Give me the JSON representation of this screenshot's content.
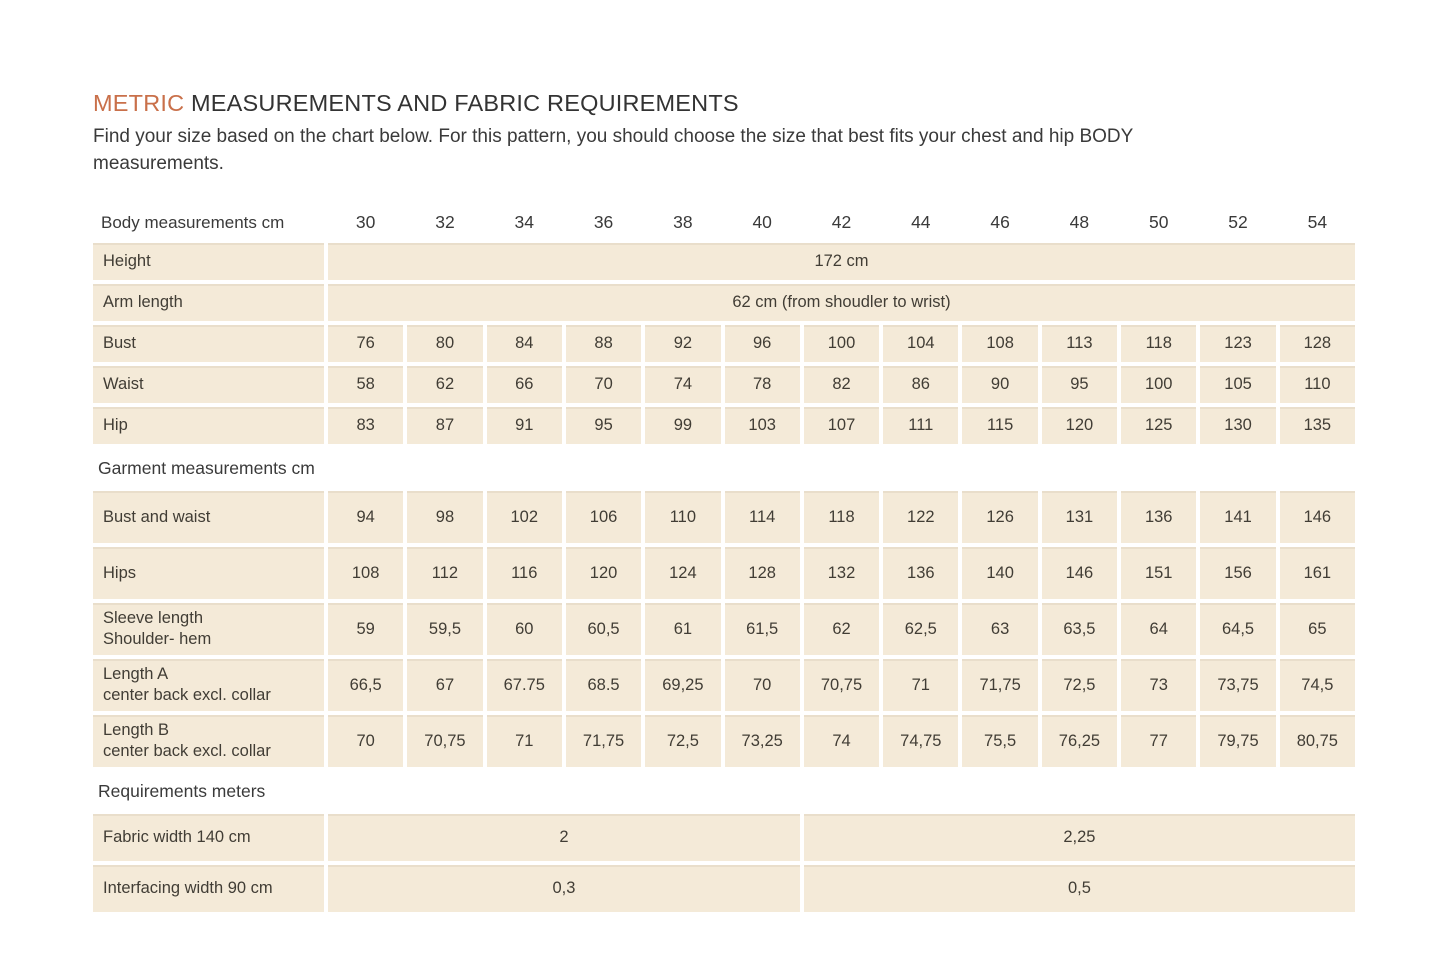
{
  "page": {
    "title_accent": "METRIC",
    "title_rest": " MEASUREMENTS AND FABRIC REQUIREMENTS",
    "subtitle": "Find your size based on the chart below. For this pattern, you should choose the size that best fits your chest and hip BODY measurements."
  },
  "colors": {
    "accent_orange": "#c9704a",
    "cell_background": "#f4ead8",
    "text": "#3c3830",
    "page_background": "#ffffff"
  },
  "table": {
    "header_label": "Body measurements cm",
    "sizes": [
      "30",
      "32",
      "34",
      "36",
      "38",
      "40",
      "42",
      "44",
      "46",
      "48",
      "50",
      "52",
      "54"
    ],
    "rows": [
      {
        "type": "span",
        "label": "Height",
        "text": "172 cm"
      },
      {
        "type": "span",
        "label": "Arm length",
        "text": "62 cm (from shoudler to wrist)"
      },
      {
        "type": "cells",
        "label": "Bust",
        "values": [
          "76",
          "80",
          "84",
          "88",
          "92",
          "96",
          "100",
          "104",
          "108",
          "113",
          "118",
          "123",
          "128"
        ]
      },
      {
        "type": "cells",
        "label": "Waist",
        "values": [
          "58",
          "62",
          "66",
          "70",
          "74",
          "78",
          "82",
          "86",
          "90",
          "95",
          "100",
          "105",
          "110"
        ]
      },
      {
        "type": "cells",
        "label": "Hip",
        "values": [
          "83",
          "87",
          "91",
          "95",
          "99",
          "103",
          "107",
          "111",
          "115",
          "120",
          "125",
          "130",
          "135"
        ]
      },
      {
        "type": "section",
        "label": "Garment measurements cm"
      },
      {
        "type": "cells",
        "tall": true,
        "label": "Bust and waist",
        "values": [
          "94",
          "98",
          "102",
          "106",
          "110",
          "114",
          "118",
          "122",
          "126",
          "131",
          "136",
          "141",
          "146"
        ]
      },
      {
        "type": "cells",
        "tall": true,
        "label": "Hips",
        "values": [
          "108",
          "112",
          "116",
          "120",
          "124",
          "128",
          "132",
          "136",
          "140",
          "146",
          "151",
          "156",
          "161"
        ]
      },
      {
        "type": "cells",
        "tall": true,
        "label": "Sleeve length",
        "label2": "Shoulder- hem",
        "values": [
          "59",
          "59,5",
          "60",
          "60,5",
          "61",
          "61,5",
          "62",
          "62,5",
          "63",
          "63,5",
          "64",
          "64,5",
          "65"
        ]
      },
      {
        "type": "cells",
        "tall": true,
        "label": "Length A",
        "label2": "center back excl. collar",
        "values": [
          "66,5",
          "67",
          "67.75",
          "68.5",
          "69,25",
          "70",
          "70,75",
          "71",
          "71,75",
          "72,5",
          "73",
          "73,75",
          "74,5"
        ]
      },
      {
        "type": "cells",
        "tall": true,
        "label": "Length B",
        "label2": "center back excl. collar",
        "values": [
          "70",
          "70,75",
          "71",
          "71,75",
          "72,5",
          "73,25",
          "74",
          "74,75",
          "75,5",
          "76,25",
          "77",
          "79,75",
          "80,75"
        ]
      },
      {
        "type": "section",
        "label": "Requirements meters"
      },
      {
        "type": "split",
        "label": "Fabric width 140 cm",
        "left": "2",
        "right": "2,25"
      },
      {
        "type": "split",
        "label": "Interfacing width 90 cm",
        "left": "0,3",
        "right": "0,5"
      }
    ]
  }
}
